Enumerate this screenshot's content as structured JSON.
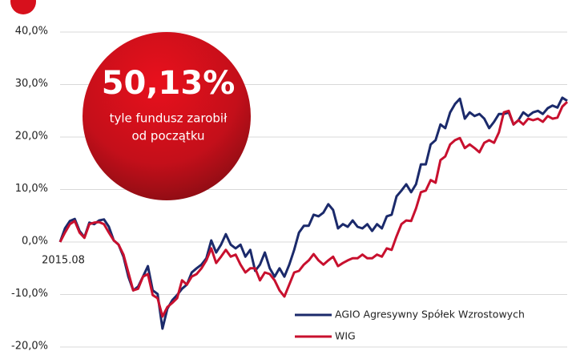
{
  "chart_data": {
    "type": "line",
    "categories": [
      "2015.08",
      null,
      null,
      null,
      null,
      null,
      null,
      null,
      null,
      null,
      null,
      null,
      null,
      null,
      null,
      null,
      null,
      null,
      null,
      null,
      null,
      null,
      null,
      null,
      null,
      null,
      null,
      null,
      null,
      null,
      null,
      null,
      null,
      null,
      null,
      null,
      null,
      null,
      null,
      null,
      null,
      null,
      null,
      null,
      null,
      null,
      null,
      null,
      null,
      null,
      null,
      null,
      null,
      null,
      null,
      null,
      null,
      null,
      null,
      null,
      null,
      null,
      null,
      null,
      null,
      null,
      null,
      null,
      null,
      null,
      null,
      null,
      null,
      null,
      null,
      null,
      null,
      null,
      null,
      null,
      null,
      null,
      null,
      null,
      null,
      null,
      null,
      null,
      null,
      null,
      null,
      null,
      null,
      null,
      null,
      null,
      null,
      null,
      null,
      null,
      null,
      null,
      null,
      null,
      null
    ],
    "series": [
      {
        "name": "AGIO Agresywny Spółek Wzrostowych",
        "color": "#1b2a6b",
        "values": [
          0,
          2.6,
          4.0,
          4.4,
          2.1,
          0.9,
          3.7,
          3.4,
          4.1,
          4.3,
          2.9,
          0.3,
          -0.5,
          -2.8,
          -6.6,
          -9.2,
          -8.5,
          -6.6,
          -4.6,
          -9.2,
          -9.9,
          -16.5,
          -12.7,
          -11.1,
          -10.1,
          -8.9,
          -8.1,
          -5.8,
          -5.0,
          -4.3,
          -3.1,
          0.3,
          -2.0,
          -0.5,
          1.5,
          -0.5,
          -1.2,
          -0.5,
          -2.8,
          -1.5,
          -5.5,
          -4.3,
          -2.0,
          -5.0,
          -6.6,
          -5.0,
          -6.6,
          -4.3,
          -1.5,
          1.8,
          3.1,
          3.1,
          5.2,
          4.9,
          5.6,
          7.2,
          6.1,
          2.6,
          3.4,
          2.9,
          4.1,
          2.9,
          2.6,
          3.4,
          2.1,
          3.4,
          2.6,
          4.9,
          5.2,
          8.7,
          9.8,
          11.0,
          9.5,
          11.0,
          14.8,
          14.8,
          18.6,
          19.4,
          22.4,
          21.7,
          24.7,
          26.3,
          27.3,
          23.5,
          24.7,
          24.0,
          24.4,
          23.5,
          21.7,
          22.9,
          24.4,
          24.4,
          24.7,
          22.4,
          23.2,
          24.7,
          24.0,
          24.7,
          25.0,
          24.4,
          25.5,
          26.0,
          25.6,
          27.5,
          26.9
        ]
      },
      {
        "name": "WIG",
        "color": "#c8102e",
        "values": [
          0,
          1.8,
          3.4,
          4.0,
          1.8,
          0.8,
          3.4,
          3.7,
          3.8,
          3.4,
          1.8,
          0.3,
          -0.5,
          -2.4,
          -5.8,
          -9.2,
          -8.9,
          -6.6,
          -6.1,
          -10.1,
          -10.7,
          -14.2,
          -12.4,
          -11.6,
          -10.7,
          -7.3,
          -8.1,
          -6.6,
          -6.1,
          -5.0,
          -3.5,
          -1.2,
          -4.0,
          -2.8,
          -1.5,
          -2.8,
          -2.4,
          -4.3,
          -5.8,
          -5.0,
          -5.0,
          -7.3,
          -5.8,
          -6.1,
          -7.3,
          -9.2,
          -10.4,
          -8.1,
          -5.8,
          -5.5,
          -4.3,
          -3.5,
          -2.3,
          -3.5,
          -4.3,
          -3.5,
          -2.8,
          -4.6,
          -4.0,
          -3.5,
          -3.1,
          -3.1,
          -2.4,
          -3.1,
          -3.1,
          -2.4,
          -2.8,
          -1.2,
          -1.5,
          1.1,
          3.4,
          4.1,
          4.0,
          6.4,
          9.5,
          9.8,
          11.8,
          11.3,
          15.6,
          16.3,
          18.6,
          19.4,
          19.8,
          17.9,
          18.6,
          17.9,
          17.1,
          18.9,
          19.4,
          18.9,
          20.9,
          24.7,
          25.0,
          22.4,
          23.2,
          22.4,
          23.5,
          23.2,
          23.5,
          22.9,
          24.0,
          23.5,
          23.7,
          25.8,
          26.7
        ]
      }
    ],
    "ylim": [
      -20,
      40
    ],
    "yticks": [
      {
        "value": -20,
        "label": "-20,0%"
      },
      {
        "value": -10,
        "label": "-10,0%"
      },
      {
        "value": 0,
        "label": "0,0%"
      },
      {
        "value": 10,
        "label": "10,0%"
      },
      {
        "value": 20,
        "label": "20,0%"
      },
      {
        "value": 30,
        "label": "30,0%"
      },
      {
        "value": 40,
        "label": "40,0%"
      }
    ],
    "grid": true,
    "legend": "lower right",
    "annotation": {
      "value": "50,13%",
      "line1": "tyle fundusz zarobił",
      "line2": "od początku"
    }
  }
}
